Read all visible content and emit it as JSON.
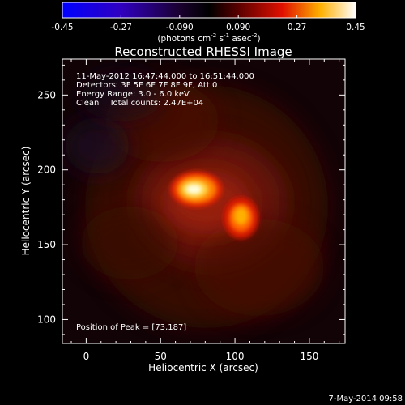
{
  "chart_data": {
    "type": "heatmap",
    "title": "Reconstructed RHESSI Image",
    "xlabel": "Heliocentric X (arcsec)",
    "ylabel": "Heliocentric Y (arcsec)",
    "xlim": [
      -16,
      174
    ],
    "ylim": [
      84,
      274
    ],
    "xticks": [
      "0",
      "50",
      "100",
      "150"
    ],
    "xtick_values": [
      0,
      50,
      100,
      150
    ],
    "yticks": [
      "100",
      "150",
      "200",
      "250"
    ],
    "ytick_values": [
      100,
      150,
      200,
      250
    ],
    "colorbar": {
      "label_main": "(photons cm",
      "label_sup1": "-2",
      "label_mid": " s",
      "label_sup2": "-1",
      "label_mid2": " asec",
      "label_sup3": "-2",
      "label_end": ")",
      "range": [
        -0.45,
        0.45
      ],
      "tick_labels": [
        "-0.45",
        "-0.27",
        "-0.090",
        "0.090",
        "0.27",
        "0.45"
      ],
      "tick_values": [
        -0.45,
        -0.27,
        -0.09,
        0.09,
        0.27,
        0.45
      ],
      "colormap": [
        "#0000ff",
        "#2a00c8",
        "#00003a",
        "#000000",
        "#5a0000",
        "#ff2000",
        "#ffd000",
        "#ffffff"
      ]
    },
    "annotations": [
      "11-May-2012 16:47:44.000 to 16:51:44.000",
      "Detectors: 3F 5F 6F 7F 8F 9F, Att 0",
      "Energy Range: 3.0 - 6.0 keV",
      "Clean    Total counts: 2.47E+04"
    ],
    "peak_label": "Position of Peak = [73,187]",
    "sources": [
      {
        "x": 73,
        "y": 187,
        "intensity": 0.45
      },
      {
        "x": 104,
        "y": 168,
        "intensity": 0.36
      }
    ],
    "grid": false
  },
  "footer": {
    "date": "7-May-2014 09:58"
  }
}
